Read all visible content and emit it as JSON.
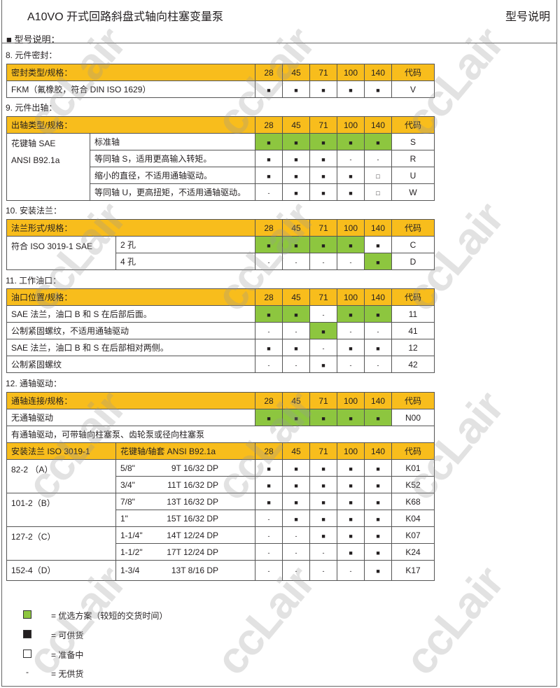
{
  "header": {
    "title": "A10VO 开式回路斜盘式轴向柱塞变量泵",
    "right": "型号说明"
  },
  "intro": "■  型号说明：",
  "colors": {
    "header": "#f8bd1c",
    "preferred": "#8dc63f",
    "available": "#231f20"
  },
  "watermark": "ccLair",
  "sizes": [
    "28",
    "45",
    "71",
    "100",
    "140"
  ],
  "code_label": "代码",
  "sections": [
    {
      "title": "8.  元件密封：",
      "header": "密封类型/规格：",
      "cols": 1,
      "rows": [
        {
          "a": "FKM（氟橡胶，符合 DIN ISO 1629）",
          "cells": [
            "■",
            "■",
            "■",
            "■",
            "■"
          ],
          "green": [
            0,
            0,
            0,
            0,
            0
          ],
          "code": "V"
        }
      ]
    },
    {
      "title": "9.  元件出轴：",
      "header": "出轴类型/规格：",
      "cols": 2,
      "rows": [
        {
          "a": "花键轴  SAE",
          "a2": "ANSI B92.1a",
          "span": 4,
          "b": "标准轴",
          "cells": [
            "■",
            "■",
            "■",
            "■",
            "■"
          ],
          "green": [
            1,
            1,
            1,
            1,
            1
          ],
          "code": "S"
        },
        {
          "b": "等同轴 S，适用更高输入转矩。",
          "cells": [
            "■",
            "■",
            "■",
            "-",
            "-"
          ],
          "green": [
            0,
            0,
            0,
            0,
            0
          ],
          "code": "R"
        },
        {
          "b": "缩小的直径，不适用通轴驱动。",
          "cells": [
            "■",
            "■",
            "■",
            "■",
            "□"
          ],
          "green": [
            0,
            0,
            0,
            0,
            0
          ],
          "code": "U"
        },
        {
          "b": "等同轴 U，更高扭矩，不适用通轴驱动。",
          "cells": [
            "-",
            "■",
            "■",
            "■",
            "□"
          ],
          "green": [
            0,
            0,
            0,
            0,
            0
          ],
          "code": "W"
        }
      ]
    },
    {
      "title": "10. 安装法兰：",
      "header": "法兰形式/规格：",
      "cols": 2,
      "rows": [
        {
          "a": "符合 ISO 3019-1 SAE",
          "span": 2,
          "b": "2 孔",
          "cells": [
            "■",
            "■",
            "■",
            "■",
            "■"
          ],
          "green": [
            1,
            1,
            1,
            1,
            0
          ],
          "code": "C"
        },
        {
          "b": "4 孔",
          "cells": [
            "-",
            "-",
            "-",
            "-",
            "■"
          ],
          "green": [
            0,
            0,
            0,
            0,
            1
          ],
          "code": "D"
        }
      ]
    },
    {
      "title": "11. 工作油口：",
      "header": "油口位置/规格：",
      "cols": 1,
      "rows": [
        {
          "a": "SAE 法兰，油口 B 和 S 在后部后面。",
          "cells": [
            "■",
            "■",
            "-",
            "■",
            "■"
          ],
          "green": [
            1,
            1,
            0,
            1,
            1
          ],
          "code": "11"
        },
        {
          "a": "公制紧固螺纹，不适用通轴驱动",
          "cells": [
            "-",
            "-",
            "■",
            "-",
            "-"
          ],
          "green": [
            0,
            0,
            1,
            0,
            0
          ],
          "code": "41"
        },
        {
          "a": "SAE 法兰，油口 B 和 S 在后部相对两侧。",
          "cells": [
            "■",
            "■",
            "-",
            "■",
            "■"
          ],
          "green": [
            0,
            0,
            0,
            0,
            0
          ],
          "code": "12"
        },
        {
          "a": "公制紧固螺纹",
          "cells": [
            "-",
            "-",
            "■",
            "-",
            "-"
          ],
          "green": [
            0,
            0,
            0,
            0,
            0
          ],
          "code": "42"
        }
      ]
    },
    {
      "title": "12. 通轴驱动：",
      "header": "通轴连接/规格：",
      "cols": 1,
      "rows": [
        {
          "a": "无通轴驱动",
          "cells": [
            "■",
            "■",
            "■",
            "■",
            "■"
          ],
          "green": [
            1,
            1,
            1,
            1,
            1
          ],
          "code": "N00"
        }
      ],
      "note": "有通轴驱动，可带轴向柱塞泵、齿轮泵或径向柱塞泵",
      "sub_header": {
        "a": "安装法兰 ISO 3019-1",
        "b": "花键轴/轴套 ANSI B92.1a"
      },
      "sub_rows": [
        {
          "a": "82-2 （A）",
          "span": 2,
          "b": "5/8\"",
          "b2": "9T 16/32 DP",
          "cells": [
            "■",
            "■",
            "■",
            "■",
            "■"
          ],
          "code": "K01"
        },
        {
          "b": "3/4\"",
          "b2": "11T 16/32 DP",
          "cells": [
            "■",
            "■",
            "■",
            "■",
            "■"
          ],
          "code": "K52"
        },
        {
          "a": "101-2（B）",
          "span": 2,
          "b": "7/8\"",
          "b2": "13T 16/32 DP",
          "cells": [
            "■",
            "■",
            "■",
            "■",
            "■"
          ],
          "code": "K68"
        },
        {
          "b": "1\"",
          "b2": "15T 16/32 DP",
          "cells": [
            "-",
            "■",
            "■",
            "■",
            "■"
          ],
          "code": "K04"
        },
        {
          "a": "127-2（C）",
          "span": 2,
          "b": "1-1/4\"",
          "b2": "14T 12/24 DP",
          "cells": [
            "-",
            "-",
            "■",
            "■",
            "■"
          ],
          "code": "K07"
        },
        {
          "b": "1-1/2\"",
          "b2": "17T 12/24 DP",
          "cells": [
            "-",
            "-",
            "-",
            "■",
            "■"
          ],
          "code": "K24"
        },
        {
          "a": "152-4（D）",
          "span": 1,
          "b": "1-3/4",
          "b2": "13T 8/16 DP",
          "cells": [
            "-",
            "-",
            "-",
            "-",
            "■"
          ],
          "code": "K17"
        }
      ]
    }
  ],
  "legend": [
    {
      "symbol": "green-square",
      "text": "=  优选方案（较短的交货时间）"
    },
    {
      "symbol": "black-square",
      "text": "=  可供货"
    },
    {
      "symbol": "white-square",
      "text": "=  准备中"
    },
    {
      "symbol": "dash",
      "text": "=  无供货"
    }
  ]
}
